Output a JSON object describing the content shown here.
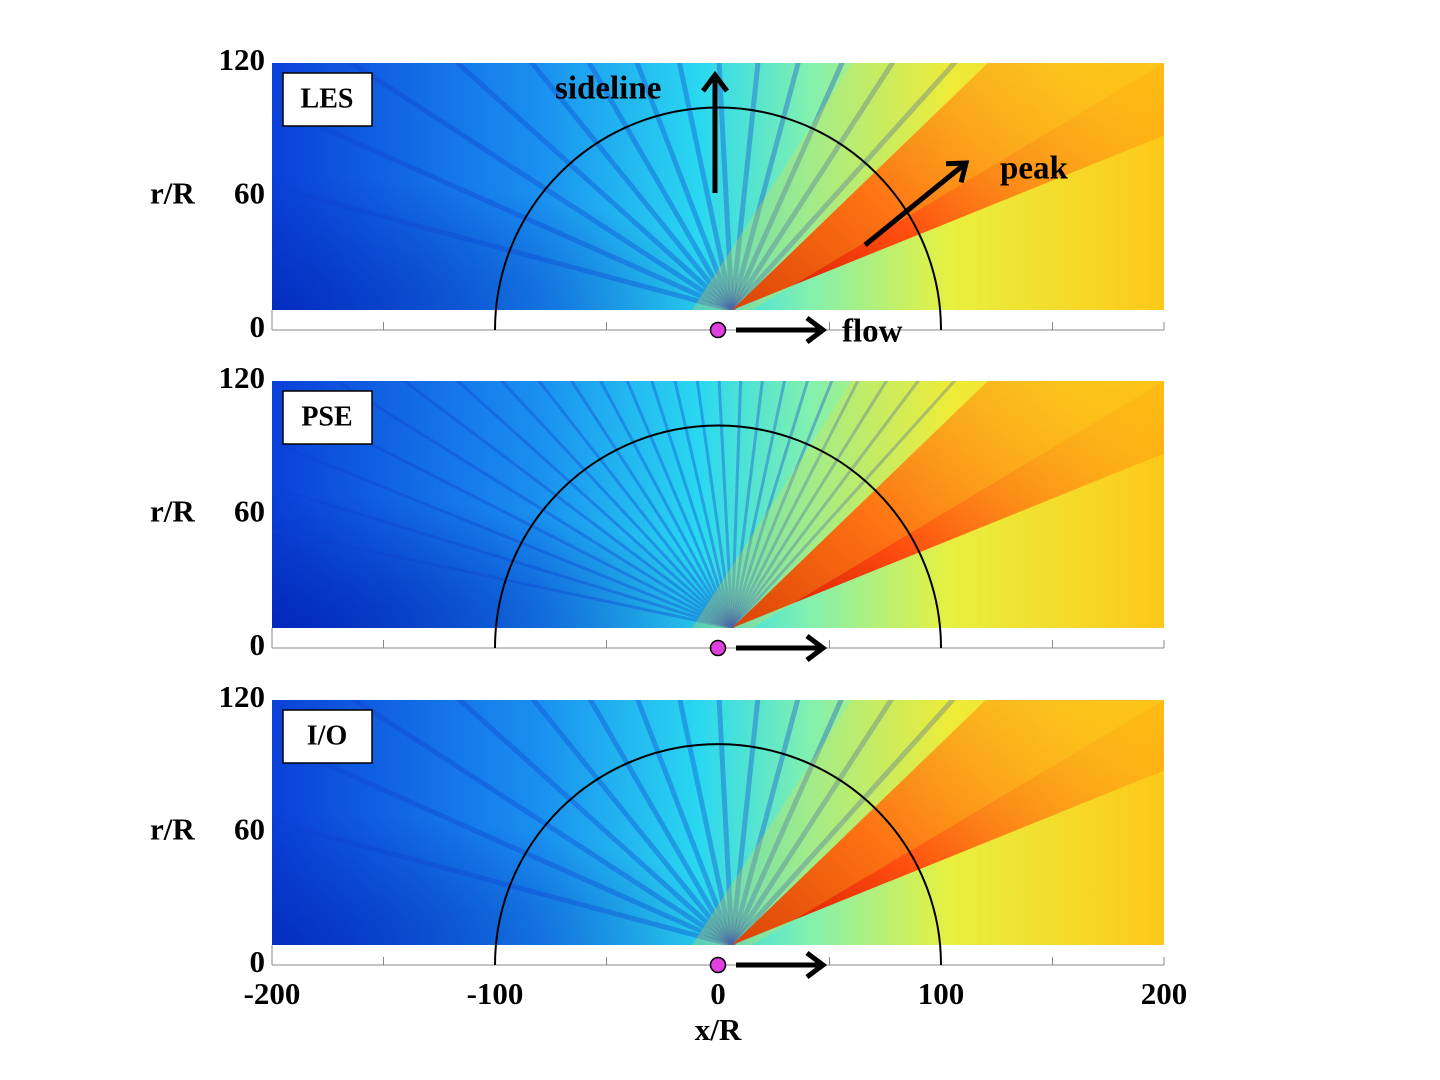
{
  "chart_data": [
    {
      "type": "heatmap",
      "title": "LES",
      "ylabel": "r/R",
      "xlim": [
        -200,
        200
      ],
      "ylim": [
        0,
        120
      ],
      "yticks": [
        0,
        60,
        120
      ],
      "xtick_marks": [
        -200,
        -150,
        -100,
        -50,
        0,
        50,
        100,
        150,
        200
      ],
      "arc_radius": 100,
      "source_x": 0,
      "annotations": [
        "sideline",
        "peak",
        "flow"
      ]
    },
    {
      "type": "heatmap",
      "title": "PSE",
      "ylabel": "r/R",
      "xlim": [
        -200,
        200
      ],
      "ylim": [
        0,
        120
      ],
      "yticks": [
        0,
        60,
        120
      ],
      "xtick_marks": [
        -200,
        -150,
        -100,
        -50,
        0,
        50,
        100,
        150,
        200
      ],
      "arc_radius": 100,
      "source_x": 0
    },
    {
      "type": "heatmap",
      "title": "I/O",
      "ylabel": "r/R",
      "xlim": [
        -200,
        200
      ],
      "ylim": [
        0,
        120
      ],
      "yticks": [
        0,
        60,
        120
      ],
      "xtick_marks": [
        -200,
        -150,
        -100,
        -50,
        0,
        50,
        100,
        150,
        200
      ],
      "arc_radius": 100,
      "source_x": 0,
      "xticks": [
        -200,
        -100,
        0,
        100,
        200
      ],
      "xlabel": "x/R"
    }
  ]
}
